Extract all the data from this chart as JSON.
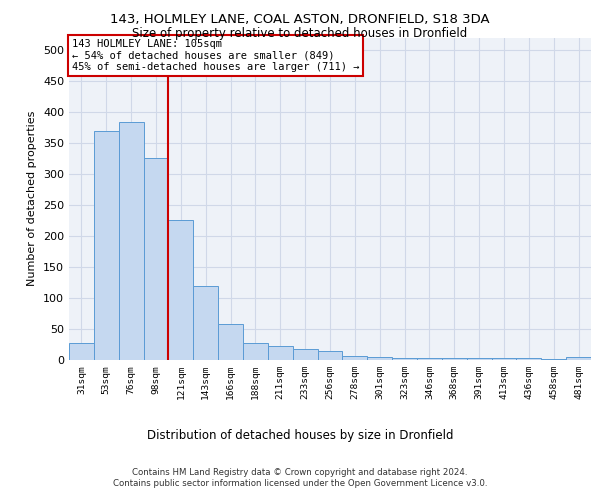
{
  "title1": "143, HOLMLEY LANE, COAL ASTON, DRONFIELD, S18 3DA",
  "title2": "Size of property relative to detached houses in Dronfield",
  "xlabel": "Distribution of detached houses by size in Dronfield",
  "ylabel": "Number of detached properties",
  "footer1": "Contains HM Land Registry data © Crown copyright and database right 2024.",
  "footer2": "Contains public sector information licensed under the Open Government Licence v3.0.",
  "bar_color": "#c5d8f0",
  "bar_edge_color": "#5b9bd5",
  "annotation_box_color": "#cc0000",
  "vline_color": "#cc0000",
  "grid_color": "#d0d8e8",
  "background_color": "#eef2f8",
  "annotation_text": "143 HOLMLEY LANE: 105sqm\n← 54% of detached houses are smaller (849)\n45% of semi-detached houses are larger (711) →",
  "categories": [
    "31sqm",
    "53sqm",
    "76sqm",
    "98sqm",
    "121sqm",
    "143sqm",
    "166sqm",
    "188sqm",
    "211sqm",
    "233sqm",
    "256sqm",
    "278sqm",
    "301sqm",
    "323sqm",
    "346sqm",
    "368sqm",
    "391sqm",
    "413sqm",
    "436sqm",
    "458sqm",
    "481sqm"
  ],
  "values": [
    28,
    370,
    383,
    325,
    225,
    120,
    58,
    27,
    22,
    18,
    14,
    7,
    5,
    4,
    4,
    4,
    4,
    4,
    4,
    1,
    5
  ],
  "ylim": [
    0,
    520
  ],
  "yticks": [
    0,
    50,
    100,
    150,
    200,
    250,
    300,
    350,
    400,
    450,
    500
  ]
}
